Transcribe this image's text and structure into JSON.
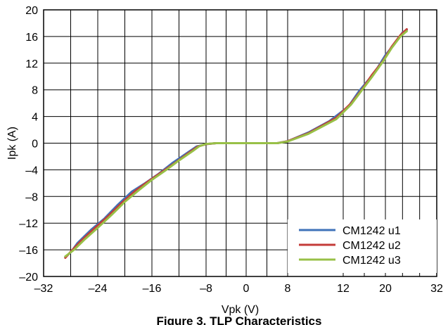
{
  "chart_data": {
    "type": "line",
    "title": "",
    "caption": "Figure 3. TLP Characteristics",
    "xlabel": "Vpk (V)",
    "ylabel": "Ipk (A)",
    "xlim": [
      -32,
      32
    ],
    "ylim": [
      -20,
      20
    ],
    "xticks": [
      -32,
      -24,
      -16,
      -8,
      0,
      8,
      12,
      20,
      32
    ],
    "yticks": [
      20,
      16,
      12,
      8,
      4,
      0,
      -4,
      -8,
      -12,
      -16,
      -20
    ],
    "xtick_labels": [
      "–32",
      "–24",
      "–16",
      "–8",
      "0",
      "8",
      "12",
      "20",
      "32"
    ],
    "ytick_labels": [
      "20",
      "16",
      "12",
      "8",
      "4",
      "0",
      "–4",
      "–8",
      "–12",
      "–16",
      "–20"
    ],
    "grid": true,
    "legend_position": "bottom-right",
    "series": [
      {
        "name": "CM1242 u1",
        "color": "#3f72b9",
        "points": [
          [
            -28.8,
            -17.1
          ],
          [
            -28.0,
            -16.4
          ],
          [
            -27.0,
            -15.0
          ],
          [
            -25.0,
            -13.0
          ],
          [
            -23.0,
            -11.3
          ],
          [
            -21.0,
            -9.2
          ],
          [
            -19.0,
            -7.3
          ],
          [
            -17.0,
            -6.0
          ],
          [
            -15.0,
            -4.6
          ],
          [
            -13.0,
            -3.0
          ],
          [
            -11.0,
            -1.6
          ],
          [
            -9.4,
            -0.5
          ],
          [
            -8.0,
            -0.15
          ],
          [
            -6.0,
            0
          ],
          [
            -2.0,
            0
          ],
          [
            2.0,
            0
          ],
          [
            6.0,
            0
          ],
          [
            8.0,
            0.3
          ],
          [
            9.5,
            1.6
          ],
          [
            11.0,
            3.3
          ],
          [
            13.0,
            5.5
          ],
          [
            15.0,
            7.8
          ],
          [
            17.0,
            9.7
          ],
          [
            18.5,
            11.3
          ],
          [
            20.0,
            13.2
          ],
          [
            22.0,
            14.8
          ],
          [
            24.0,
            16.6
          ],
          [
            25.0,
            17.0
          ]
        ]
      },
      {
        "name": "CM1242 u2",
        "color": "#c43c39",
        "points": [
          [
            -28.8,
            -17.2
          ],
          [
            -28.0,
            -16.3
          ],
          [
            -26.5,
            -14.7
          ],
          [
            -24.5,
            -12.8
          ],
          [
            -22.5,
            -11.0
          ],
          [
            -20.5,
            -9.0
          ],
          [
            -18.5,
            -7.2
          ],
          [
            -16.5,
            -5.7
          ],
          [
            -14.5,
            -4.3
          ],
          [
            -12.5,
            -2.9
          ],
          [
            -10.5,
            -1.4
          ],
          [
            -9.2,
            -0.5
          ],
          [
            -8.0,
            -0.15
          ],
          [
            -6.0,
            0
          ],
          [
            -2.0,
            0
          ],
          [
            2.0,
            0
          ],
          [
            6.0,
            0
          ],
          [
            8.0,
            0.3
          ],
          [
            9.5,
            1.5
          ],
          [
            11.5,
            3.8
          ],
          [
            13.5,
            6.0
          ],
          [
            15.5,
            8.0
          ],
          [
            17.5,
            10.3
          ],
          [
            19.5,
            12.3
          ],
          [
            21.5,
            14.5
          ],
          [
            23.5,
            16.2
          ],
          [
            25.0,
            17.1
          ]
        ]
      },
      {
        "name": "CM1242 u3",
        "color": "#98c047",
        "points": [
          [
            -28.8,
            -17.0
          ],
          [
            -27.5,
            -16.0
          ],
          [
            -26.0,
            -14.5
          ],
          [
            -24.0,
            -12.7
          ],
          [
            -22.0,
            -10.8
          ],
          [
            -20.0,
            -8.8
          ],
          [
            -18.0,
            -7.1
          ],
          [
            -16.0,
            -5.5
          ],
          [
            -14.0,
            -4.1
          ],
          [
            -12.0,
            -2.6
          ],
          [
            -10.0,
            -1.2
          ],
          [
            -9.0,
            -0.45
          ],
          [
            -8.0,
            -0.12
          ],
          [
            -6.0,
            0
          ],
          [
            -2.0,
            0
          ],
          [
            2.0,
            0
          ],
          [
            6.0,
            0
          ],
          [
            8.0,
            0.25
          ],
          [
            9.5,
            1.4
          ],
          [
            11.5,
            3.6
          ],
          [
            13.5,
            5.8
          ],
          [
            15.5,
            7.9
          ],
          [
            17.5,
            10.0
          ],
          [
            19.5,
            12.2
          ],
          [
            21.5,
            14.3
          ],
          [
            23.5,
            16.0
          ],
          [
            25.0,
            16.8
          ]
        ]
      }
    ]
  }
}
